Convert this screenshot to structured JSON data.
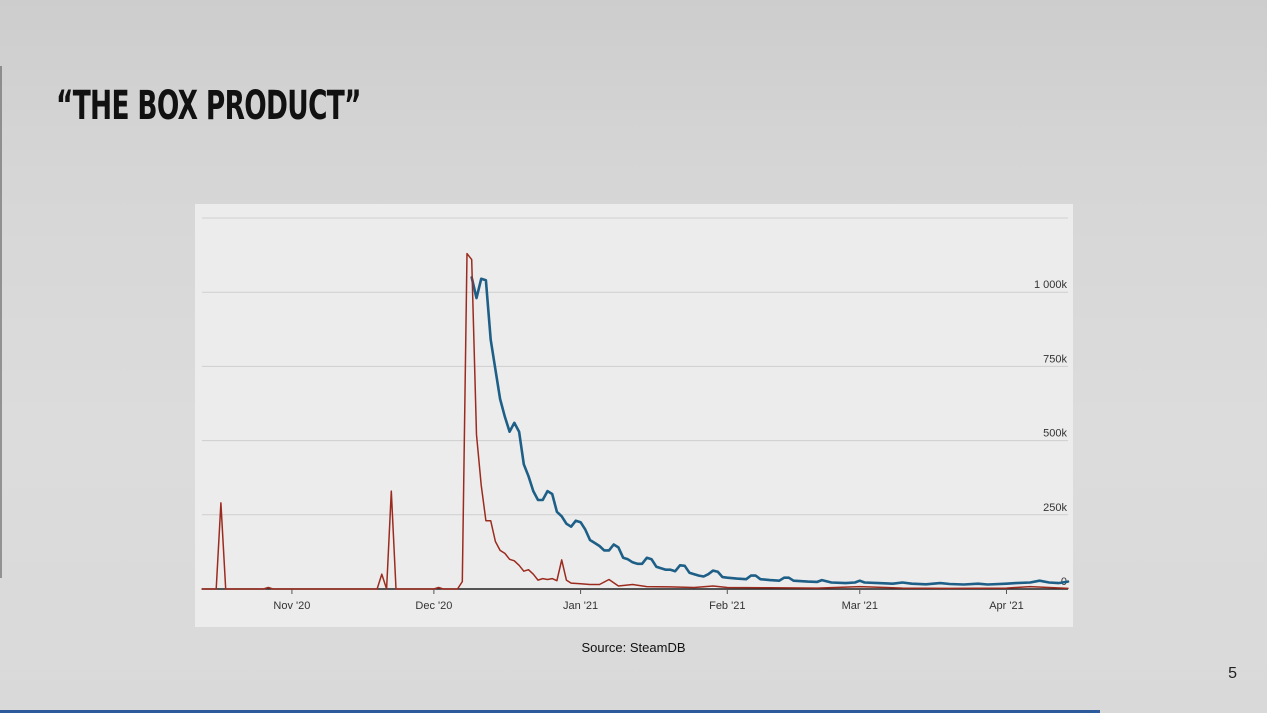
{
  "slide": {
    "title": "“THE BOX PRODUCT”",
    "source": "Source: SteamDB",
    "page_number": "5"
  },
  "chart_data": {
    "type": "line",
    "title": "",
    "xlabel": "",
    "ylabel": "",
    "x_ticks": [
      "Nov '20",
      "Dec '20",
      "Jan '21",
      "Feb '21",
      "Mar '21",
      "Apr '21"
    ],
    "y_ticks": [
      "0",
      "250k",
      "500k",
      "750k",
      "1 000k"
    ],
    "y_tick_values": [
      0,
      250000,
      500000,
      750000,
      1000000
    ],
    "xlim": [
      "2020-10-13",
      "2021-04-14"
    ],
    "ylim": [
      0,
      1250000
    ],
    "grid": true,
    "y_axis_side": "right",
    "series": [
      {
        "color": "#1e5f87",
        "points": [
          [
            "2020-12-09",
            1050000
          ],
          [
            "2020-12-10",
            980000
          ],
          [
            "2020-12-11",
            1045000
          ],
          [
            "2020-12-12",
            1040000
          ],
          [
            "2020-12-13",
            840000
          ],
          [
            "2020-12-14",
            740000
          ],
          [
            "2020-12-15",
            640000
          ],
          [
            "2020-12-16",
            580000
          ],
          [
            "2020-12-17",
            530000
          ],
          [
            "2020-12-18",
            560000
          ],
          [
            "2020-12-19",
            530000
          ],
          [
            "2020-12-20",
            420000
          ],
          [
            "2020-12-21",
            380000
          ],
          [
            "2020-12-22",
            330000
          ],
          [
            "2020-12-23",
            300000
          ],
          [
            "2020-12-24",
            300000
          ],
          [
            "2020-12-25",
            330000
          ],
          [
            "2020-12-26",
            320000
          ],
          [
            "2020-12-27",
            260000
          ],
          [
            "2020-12-28",
            245000
          ],
          [
            "2020-12-29",
            220000
          ],
          [
            "2020-12-30",
            210000
          ],
          [
            "2020-12-31",
            230000
          ],
          [
            "2021-01-01",
            225000
          ],
          [
            "2021-01-02",
            200000
          ],
          [
            "2021-01-03",
            165000
          ],
          [
            "2021-01-04",
            155000
          ],
          [
            "2021-01-05",
            145000
          ],
          [
            "2021-01-06",
            130000
          ],
          [
            "2021-01-07",
            130000
          ],
          [
            "2021-01-08",
            150000
          ],
          [
            "2021-01-09",
            140000
          ],
          [
            "2021-01-10",
            105000
          ],
          [
            "2021-01-11",
            100000
          ],
          [
            "2021-01-12",
            90000
          ],
          [
            "2021-01-13",
            85000
          ],
          [
            "2021-01-14",
            85000
          ],
          [
            "2021-01-15",
            105000
          ],
          [
            "2021-01-16",
            100000
          ],
          [
            "2021-01-17",
            75000
          ],
          [
            "2021-01-18",
            70000
          ],
          [
            "2021-01-19",
            65000
          ],
          [
            "2021-01-20",
            65000
          ],
          [
            "2021-01-21",
            60000
          ],
          [
            "2021-01-22",
            80000
          ],
          [
            "2021-01-23",
            78000
          ],
          [
            "2021-01-24",
            55000
          ],
          [
            "2021-01-25",
            50000
          ],
          [
            "2021-01-26",
            45000
          ],
          [
            "2021-01-27",
            42000
          ],
          [
            "2021-01-28",
            50000
          ],
          [
            "2021-01-29",
            62000
          ],
          [
            "2021-01-30",
            58000
          ],
          [
            "2021-01-31",
            40000
          ],
          [
            "2021-02-01",
            38000
          ],
          [
            "2021-02-03",
            35000
          ],
          [
            "2021-02-05",
            33000
          ],
          [
            "2021-02-06",
            45000
          ],
          [
            "2021-02-07",
            45000
          ],
          [
            "2021-02-08",
            33000
          ],
          [
            "2021-02-10",
            30000
          ],
          [
            "2021-02-12",
            28000
          ],
          [
            "2021-02-13",
            38000
          ],
          [
            "2021-02-14",
            38000
          ],
          [
            "2021-02-15",
            28000
          ],
          [
            "2021-02-18",
            25000
          ],
          [
            "2021-02-20",
            24000
          ],
          [
            "2021-02-21",
            30000
          ],
          [
            "2021-02-23",
            22000
          ],
          [
            "2021-02-26",
            20000
          ],
          [
            "2021-02-28",
            22000
          ],
          [
            "2021-03-01",
            28000
          ],
          [
            "2021-03-02",
            22000
          ],
          [
            "2021-03-05",
            20000
          ],
          [
            "2021-03-08",
            18000
          ],
          [
            "2021-03-10",
            22000
          ],
          [
            "2021-03-12",
            18000
          ],
          [
            "2021-03-15",
            16000
          ],
          [
            "2021-03-18",
            20000
          ],
          [
            "2021-03-20",
            17000
          ],
          [
            "2021-03-23",
            15000
          ],
          [
            "2021-03-26",
            18000
          ],
          [
            "2021-03-28",
            15000
          ],
          [
            "2021-04-01",
            18000
          ],
          [
            "2021-04-03",
            20000
          ],
          [
            "2021-04-06",
            22000
          ],
          [
            "2021-04-08",
            28000
          ],
          [
            "2021-04-10",
            22000
          ],
          [
            "2021-04-12",
            20000
          ],
          [
            "2021-04-14",
            25000
          ]
        ]
      },
      {
        "color": "#9c2b1f",
        "points": [
          [
            "2020-10-13",
            0
          ],
          [
            "2020-10-16",
            0
          ],
          [
            "2020-10-17",
            290000
          ],
          [
            "2020-10-18",
            0
          ],
          [
            "2020-10-26",
            0
          ],
          [
            "2020-10-27",
            5000
          ],
          [
            "2020-10-28",
            0
          ],
          [
            "2020-11-19",
            0
          ],
          [
            "2020-11-20",
            50000
          ],
          [
            "2020-11-21",
            0
          ],
          [
            "2020-11-22",
            330000
          ],
          [
            "2020-11-23",
            0
          ],
          [
            "2020-12-01",
            0
          ],
          [
            "2020-12-02",
            5000
          ],
          [
            "2020-12-03",
            0
          ],
          [
            "2020-12-06",
            0
          ],
          [
            "2020-12-07",
            25000
          ],
          [
            "2020-12-08",
            1130000
          ],
          [
            "2020-12-09",
            1110000
          ],
          [
            "2020-12-10",
            520000
          ],
          [
            "2020-12-11",
            350000
          ],
          [
            "2020-12-12",
            230000
          ],
          [
            "2020-12-13",
            230000
          ],
          [
            "2020-12-14",
            160000
          ],
          [
            "2020-12-15",
            130000
          ],
          [
            "2020-12-16",
            120000
          ],
          [
            "2020-12-17",
            100000
          ],
          [
            "2020-12-18",
            95000
          ],
          [
            "2020-12-19",
            80000
          ],
          [
            "2020-12-20",
            60000
          ],
          [
            "2020-12-21",
            65000
          ],
          [
            "2020-12-22",
            50000
          ],
          [
            "2020-12-23",
            30000
          ],
          [
            "2020-12-24",
            35000
          ],
          [
            "2020-12-25",
            32000
          ],
          [
            "2020-12-26",
            35000
          ],
          [
            "2020-12-27",
            28000
          ],
          [
            "2020-12-28",
            98000
          ],
          [
            "2020-12-29",
            30000
          ],
          [
            "2020-12-30",
            20000
          ],
          [
            "2021-01-01",
            18000
          ],
          [
            "2021-01-03",
            15000
          ],
          [
            "2021-01-05",
            15000
          ],
          [
            "2021-01-07",
            32000
          ],
          [
            "2021-01-09",
            10000
          ],
          [
            "2021-01-12",
            15000
          ],
          [
            "2021-01-15",
            8000
          ],
          [
            "2021-01-20",
            7000
          ],
          [
            "2021-01-25",
            5000
          ],
          [
            "2021-01-29",
            10000
          ],
          [
            "2021-02-01",
            5000
          ],
          [
            "2021-02-10",
            4000
          ],
          [
            "2021-02-20",
            3000
          ],
          [
            "2021-03-01",
            8000
          ],
          [
            "2021-03-10",
            3000
          ],
          [
            "2021-03-20",
            2000
          ],
          [
            "2021-04-01",
            3000
          ],
          [
            "2021-04-06",
            8000
          ],
          [
            "2021-04-14",
            2000
          ]
        ]
      }
    ]
  }
}
